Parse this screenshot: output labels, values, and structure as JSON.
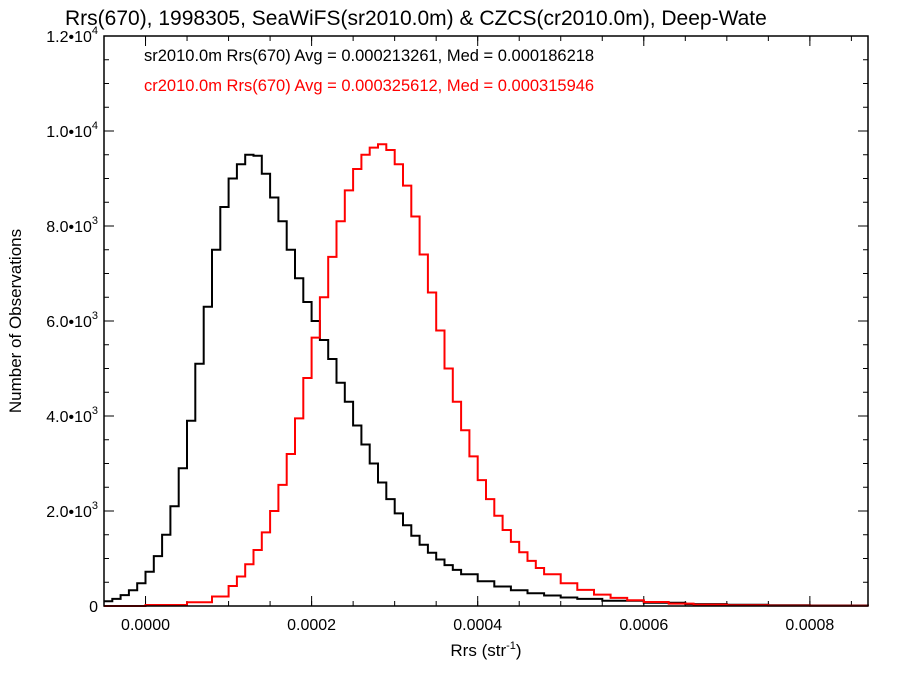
{
  "chart_data": {
    "type": "line",
    "title": "Rrs(670), 1998305, SeaWiFS(sr2010.0m) & CZCS(cr2010.0m), Deep-Wate",
    "xlabel": "Rrs (str",
    "xlabel_sup": "-1",
    "xlabel_close": ")",
    "ylabel": "Number of Observations",
    "xlim": [
      -5e-05,
      0.00087
    ],
    "ylim": [
      0,
      12000
    ],
    "x_ticks": [
      0.0,
      0.0002,
      0.0004,
      0.0006,
      0.0008
    ],
    "x_tick_labels": [
      "0.0000",
      "0.0002",
      "0.0004",
      "0.0006",
      "0.0008"
    ],
    "y_ticks": [
      0,
      2000,
      4000,
      6000,
      8000,
      10000,
      12000
    ],
    "y_tick_labels": [
      {
        "base": "0",
        "exp": ""
      },
      {
        "base": "2.0•10",
        "exp": "3"
      },
      {
        "base": "4.0•10",
        "exp": "3"
      },
      {
        "base": "6.0•10",
        "exp": "3"
      },
      {
        "base": "8.0•10",
        "exp": "3"
      },
      {
        "base": "1.0•10",
        "exp": "4"
      },
      {
        "base": "1.2•10",
        "exp": "4"
      }
    ],
    "annotations": [
      {
        "text": "sr2010.0m Rrs(670) Avg = 0.000213261, Med = 0.000186218",
        "color": "#000000"
      },
      {
        "text": "cr2010.0m Rrs(670) Avg = 0.000325612, Med = 0.000315946",
        "color": "#ff0000"
      }
    ],
    "series": [
      {
        "color": "#000000",
        "x": [
          -5e-05,
          -4e-05,
          -3e-05,
          -2e-05,
          -1e-05,
          0.0,
          1e-05,
          2e-05,
          3e-05,
          4e-05,
          5e-05,
          6e-05,
          7e-05,
          8e-05,
          9e-05,
          0.0001,
          0.00011,
          0.00012,
          0.00013,
          0.00014,
          0.00015,
          0.00016,
          0.00017,
          0.00018,
          0.00019,
          0.0002,
          0.00021,
          0.00022,
          0.00023,
          0.00024,
          0.00025,
          0.00026,
          0.00027,
          0.00028,
          0.00029,
          0.0003,
          0.00031,
          0.00032,
          0.00033,
          0.00034,
          0.00035,
          0.00036,
          0.00037,
          0.00038,
          0.0004,
          0.00042,
          0.00044,
          0.00046,
          0.00048,
          0.0005,
          0.00052,
          0.00055,
          0.0006,
          0.00065,
          0.0007,
          0.00075,
          0.0008,
          0.00087
        ],
        "y": [
          100,
          150,
          230,
          330,
          480,
          720,
          1050,
          1500,
          2100,
          2900,
          3900,
          5100,
          6300,
          7500,
          8400,
          9000,
          9300,
          9500,
          9480,
          9100,
          8600,
          8100,
          7500,
          6900,
          6400,
          6000,
          5600,
          5200,
          4700,
          4300,
          3800,
          3400,
          3000,
          2600,
          2250,
          1950,
          1700,
          1480,
          1290,
          1120,
          980,
          860,
          760,
          670,
          520,
          410,
          330,
          270,
          220,
          180,
          150,
          110,
          70,
          40,
          25,
          15,
          10,
          5
        ]
      },
      {
        "color": "#ff0000",
        "x": [
          -5e-05,
          0.0,
          5e-05,
          8e-05,
          0.0001,
          0.00011,
          0.00012,
          0.00013,
          0.00014,
          0.00015,
          0.00016,
          0.00017,
          0.00018,
          0.00019,
          0.0002,
          0.00021,
          0.00022,
          0.00023,
          0.00024,
          0.00025,
          0.00026,
          0.00027,
          0.00028,
          0.00029,
          0.0003,
          0.00031,
          0.00032,
          0.00033,
          0.00034,
          0.00035,
          0.00036,
          0.00037,
          0.00038,
          0.00039,
          0.0004,
          0.00041,
          0.00042,
          0.00043,
          0.00044,
          0.00045,
          0.00046,
          0.00047,
          0.00048,
          0.0005,
          0.00052,
          0.00054,
          0.00056,
          0.00058,
          0.0006,
          0.00063,
          0.00066,
          0.0007,
          0.00075,
          0.0008,
          0.00087
        ],
        "y": [
          0,
          20,
          80,
          200,
          420,
          620,
          880,
          1180,
          1550,
          2000,
          2550,
          3200,
          3950,
          4800,
          5650,
          6500,
          7350,
          8100,
          8750,
          9200,
          9500,
          9650,
          9720,
          9600,
          9300,
          8850,
          8200,
          7400,
          6600,
          5800,
          5000,
          4300,
          3700,
          3150,
          2650,
          2250,
          1900,
          1600,
          1350,
          1130,
          950,
          800,
          670,
          480,
          340,
          240,
          170,
          120,
          85,
          50,
          30,
          15,
          8,
          4,
          2
        ]
      }
    ]
  }
}
